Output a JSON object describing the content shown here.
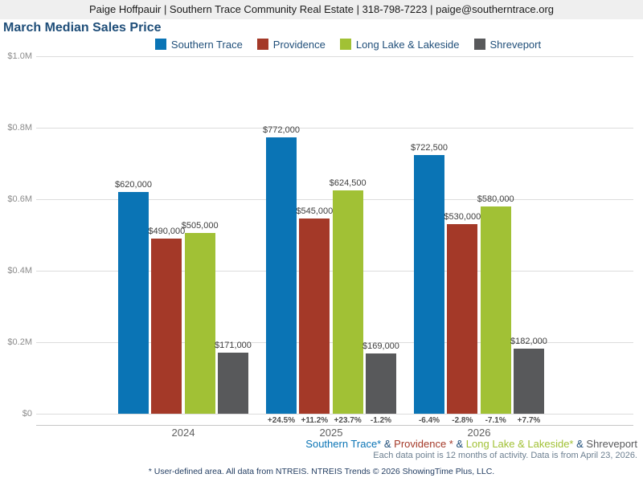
{
  "header": {
    "contact_line": "Paige Hoffpauir | Southern Trace Community Real Estate | 318-798-7223 | paige@southerntrace.org"
  },
  "title": "March Median Sales Price",
  "legend": [
    {
      "label": "Southern Trace",
      "color": "#0a74b5"
    },
    {
      "label": "Providence",
      "color": "#a43928"
    },
    {
      "label": "Long Lake & Lakeside",
      "color": "#a1c135"
    },
    {
      "label": "Shreveport",
      "color": "#58595b"
    }
  ],
  "chart_data": {
    "type": "bar",
    "title": "March Median Sales Price",
    "categories": [
      "2024",
      "2025",
      "2026"
    ],
    "series": [
      {
        "name": "Southern Trace",
        "color": "#0a74b5",
        "values": [
          620000,
          772000,
          722500
        ],
        "value_labels": [
          "$620,000",
          "$772,000",
          "$722,500"
        ],
        "pct_change": [
          null,
          "+24.5%",
          "-6.4%"
        ]
      },
      {
        "name": "Providence",
        "color": "#a43928",
        "values": [
          490000,
          545000,
          530000
        ],
        "value_labels": [
          "$490,000",
          "$545,000",
          "$530,000"
        ],
        "pct_change": [
          null,
          "+11.2%",
          "-2.8%"
        ]
      },
      {
        "name": "Long Lake & Lakeside",
        "color": "#a1c135",
        "values": [
          505000,
          624500,
          580000
        ],
        "value_labels": [
          "$505,000",
          "$624,500",
          "$580,000"
        ],
        "pct_change": [
          null,
          "+23.7%",
          "-7.1%"
        ]
      },
      {
        "name": "Shreveport",
        "color": "#58595b",
        "values": [
          171000,
          169000,
          182000
        ],
        "value_labels": [
          "$171,000",
          "$169,000",
          "$182,000"
        ],
        "pct_change": [
          null,
          "-1.2%",
          "+7.7%"
        ]
      }
    ],
    "y_axis": {
      "ticks": [
        "$0",
        "$0.2M",
        "$0.4M",
        "$0.6M",
        "$0.8M",
        "$1.0M"
      ],
      "tick_values": [
        0,
        200000,
        400000,
        600000,
        800000,
        1000000
      ],
      "max": 1000000,
      "min": 0
    },
    "grid": true,
    "legend_position": "top"
  },
  "footer": {
    "series_line": [
      {
        "text": "Southern Trace*",
        "color": "#0a74b5"
      },
      {
        "text": " & ",
        "color": "#1f4e79"
      },
      {
        "text": "Providence *",
        "color": "#a43928"
      },
      {
        "text": " & ",
        "color": "#1f4e79"
      },
      {
        "text": "Long Lake & Lakeside*",
        "color": "#a1c135"
      },
      {
        "text": " & ",
        "color": "#1f4e79"
      },
      {
        "text": "Shreveport",
        "color": "#58595b"
      }
    ],
    "data_note": "Each data point is 12 months of activity. Data is from April 23, 2026.",
    "disclaimer": "* User-defined area. All data from NTREIS. NTREIS Trends © 2026 ShowingTime Plus, LLC."
  }
}
